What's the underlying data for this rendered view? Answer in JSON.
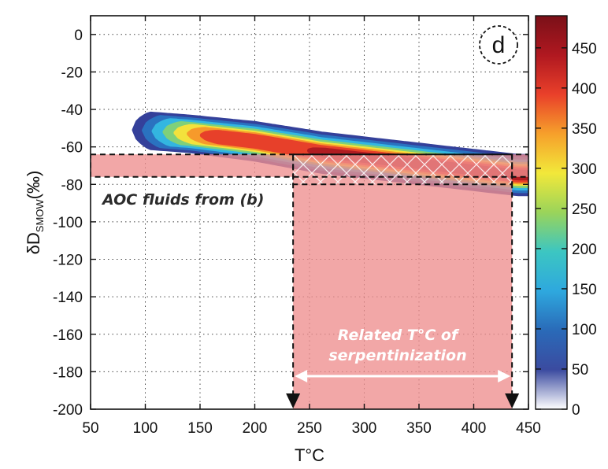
{
  "chart_data": {
    "type": "heatmap",
    "panel_label": "d",
    "xlabel": "T°C",
    "ylabel_main": "δD",
    "ylabel_sub": "SMOW",
    "ylabel_unit": "(‰)",
    "xlim": [
      50,
      450
    ],
    "ylim": [
      -200,
      10
    ],
    "x_ticks": [
      50,
      100,
      150,
      200,
      250,
      300,
      350,
      400,
      450
    ],
    "y_ticks": [
      0,
      -20,
      -40,
      -60,
      -80,
      -100,
      -120,
      -140,
      -160,
      -180,
      -200
    ],
    "grid": true,
    "colorbar": {
      "min": 0,
      "max": 490,
      "ticks": [
        0,
        50,
        100,
        150,
        200,
        250,
        300,
        350,
        400,
        450
      ],
      "colors": [
        "#ffffff",
        "#3b4ba0",
        "#2a6ab8",
        "#2ea8de",
        "#3cc6c2",
        "#9ad45a",
        "#f2e83a",
        "#f6a02b",
        "#e9402a",
        "#b01820",
        "#7a1018"
      ]
    },
    "density_band": {
      "center": [
        [
          95,
          -51
        ],
        [
          140,
          -53
        ],
        [
          200,
          -57
        ],
        [
          260,
          -63
        ],
        [
          320,
          -67
        ],
        [
          380,
          -71
        ],
        [
          440,
          -75
        ]
      ],
      "half_width": [
        [
          95,
          9
        ],
        [
          140,
          9
        ],
        [
          250,
          10
        ],
        [
          440,
          10
        ]
      ],
      "peak_density": 480
    },
    "aoc_fluids_range": {
      "dD": [
        -76,
        -64
      ],
      "x": [
        50,
        450
      ],
      "label": "AOC fluids from (b)"
    },
    "serpentinization_range": {
      "T": [
        235,
        435
      ],
      "dD_box": [
        -80,
        -64
      ],
      "label_line1": "Related T°C of",
      "label_line2": "serpentinization"
    }
  }
}
